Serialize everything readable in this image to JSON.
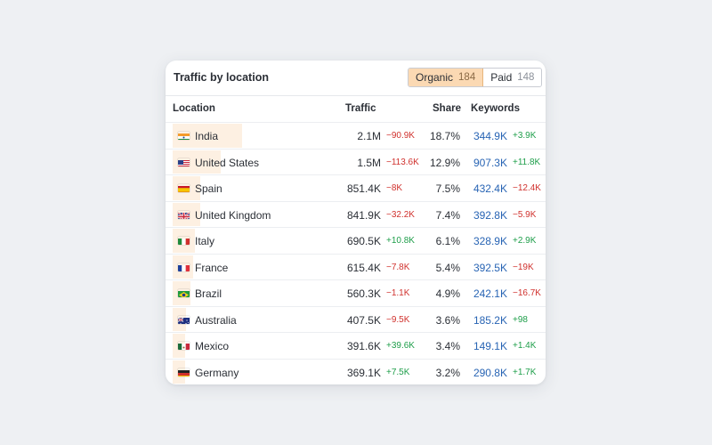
{
  "widget": {
    "title": "Traffic by location",
    "toggle": {
      "organic_label": "Organic",
      "organic_count": "184",
      "paid_label": "Paid",
      "paid_count": "148",
      "selected": "Organic"
    },
    "columns": {
      "location": "Location",
      "traffic": "Traffic",
      "share": "Share",
      "keywords": "Keywords"
    },
    "rows": [
      {
        "location": "India",
        "flag": "in-flag-icon",
        "traffic": "2.1M",
        "traffic_delta": "−90.9K",
        "traffic_trend": "neg",
        "share": "18.7%",
        "share_value": 18.7,
        "keywords": "344.9K",
        "keywords_delta": "+3.9K",
        "keywords_trend": "pos"
      },
      {
        "location": "United States",
        "flag": "us-flag-icon",
        "traffic": "1.5M",
        "traffic_delta": "−113.6K",
        "traffic_trend": "neg",
        "share": "12.9%",
        "share_value": 12.9,
        "keywords": "907.3K",
        "keywords_delta": "+11.8K",
        "keywords_trend": "pos"
      },
      {
        "location": "Spain",
        "flag": "es-flag-icon",
        "traffic": "851.4K",
        "traffic_delta": "−8K",
        "traffic_trend": "neg",
        "share": "7.5%",
        "share_value": 7.5,
        "keywords": "432.4K",
        "keywords_delta": "−12.4K",
        "keywords_trend": "neg"
      },
      {
        "location": "United Kingdom",
        "flag": "gb-flag-icon",
        "traffic": "841.9K",
        "traffic_delta": "−32.2K",
        "traffic_trend": "neg",
        "share": "7.4%",
        "share_value": 7.4,
        "keywords": "392.8K",
        "keywords_delta": "−5.9K",
        "keywords_trend": "neg"
      },
      {
        "location": "Italy",
        "flag": "it-flag-icon",
        "traffic": "690.5K",
        "traffic_delta": "+10.8K",
        "traffic_trend": "pos",
        "share": "6.1%",
        "share_value": 6.1,
        "keywords": "328.9K",
        "keywords_delta": "+2.9K",
        "keywords_trend": "pos"
      },
      {
        "location": "France",
        "flag": "fr-flag-icon",
        "traffic": "615.4K",
        "traffic_delta": "−7.8K",
        "traffic_trend": "neg",
        "share": "5.4%",
        "share_value": 5.4,
        "keywords": "392.5K",
        "keywords_delta": "−19K",
        "keywords_trend": "neg"
      },
      {
        "location": "Brazil",
        "flag": "br-flag-icon",
        "traffic": "560.3K",
        "traffic_delta": "−1.1K",
        "traffic_trend": "neg",
        "share": "4.9%",
        "share_value": 4.9,
        "keywords": "242.1K",
        "keywords_delta": "−16.7K",
        "keywords_trend": "neg"
      },
      {
        "location": "Australia",
        "flag": "au-flag-icon",
        "traffic": "407.5K",
        "traffic_delta": "−9.5K",
        "traffic_trend": "neg",
        "share": "3.6%",
        "share_value": 3.6,
        "keywords": "185.2K",
        "keywords_delta": "+98",
        "keywords_trend": "pos"
      },
      {
        "location": "Mexico",
        "flag": "mx-flag-icon",
        "traffic": "391.6K",
        "traffic_delta": "+39.6K",
        "traffic_trend": "pos",
        "share": "3.4%",
        "share_value": 3.4,
        "keywords": "149.1K",
        "keywords_delta": "+1.4K",
        "keywords_trend": "pos"
      },
      {
        "location": "Germany",
        "flag": "de-flag-icon",
        "traffic": "369.1K",
        "traffic_delta": "+7.5K",
        "traffic_trend": "pos",
        "share": "3.2%",
        "share_value": 3.2,
        "keywords": "290.8K",
        "keywords_delta": "+1.7K",
        "keywords_trend": "pos"
      }
    ]
  },
  "colors": {
    "background": "#eef0f3",
    "active_toggle": "#fbd9b3",
    "share_bar": "#fdf0e2",
    "positive": "#1e9e4a",
    "negative": "#d0312d",
    "link": "#2864b4"
  }
}
